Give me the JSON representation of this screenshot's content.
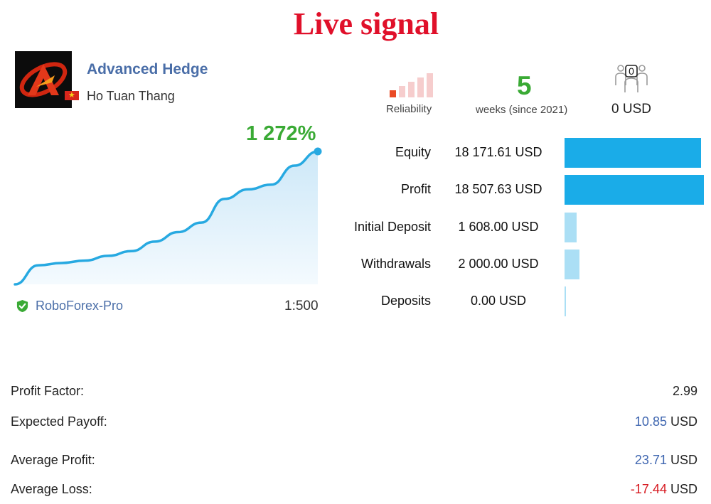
{
  "title": "Live signal",
  "signal": {
    "name": "Advanced Hedge",
    "author": "Ho Tuan Thang",
    "growth": "1 272%",
    "broker": "RoboForex-Pro",
    "leverage": "1:500",
    "growth_curve": [
      0,
      8,
      9,
      10,
      12,
      14,
      18,
      22,
      26,
      36,
      40,
      42,
      50,
      56
    ]
  },
  "header_stats": {
    "reliability_label": "Reliability",
    "reliability_level": 1,
    "reliability_max": 5,
    "weeks_value": "5",
    "weeks_label": "weeks (since 2021)",
    "subscribers_count": "0",
    "subscribers_funds": "0 USD"
  },
  "account_stats": [
    {
      "label": "Equity",
      "value": "18 171.61 USD",
      "amount": 18171.61
    },
    {
      "label": "Profit",
      "value": "18 507.63 USD",
      "amount": 18507.63
    },
    {
      "label": "Initial Deposit",
      "value": "1 608.00 USD",
      "amount": 1608.0
    },
    {
      "label": "Withdrawals",
      "value": "2 000.00 USD",
      "amount": 2000.0
    },
    {
      "label": "Deposits",
      "value": "0.00 USD",
      "amount": 0.0
    }
  ],
  "trade_stats": {
    "profit_factor_label": "Profit Factor:",
    "profit_factor_value": "2.99",
    "expected_payoff_label": "Expected Payoff:",
    "expected_payoff_value": "10.85",
    "expected_payoff_unit": "USD",
    "average_profit_label": "Average Profit:",
    "average_profit_value": "23.71",
    "average_profit_unit": "USD",
    "average_loss_label": "Average Loss:",
    "average_loss_value": "-17.44",
    "average_loss_unit": "USD"
  },
  "colors": {
    "title": "#e0102a",
    "accent_green": "#3aaa35",
    "link_blue": "#4a6ea8",
    "bar_blue": "#1aace8",
    "bar_light": "#abdff5",
    "loss_red": "#d6181f"
  }
}
